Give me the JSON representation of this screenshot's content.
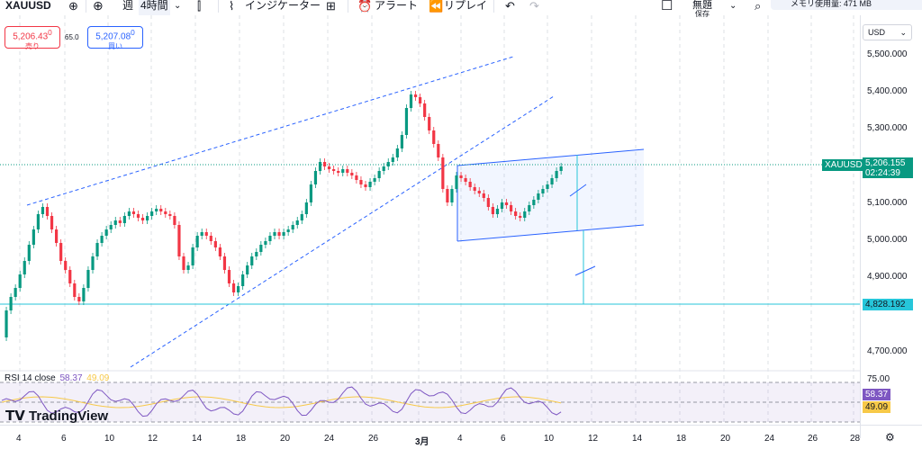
{
  "toolbar": {
    "symbol": "XAUUSD",
    "interval_week": "週",
    "interval_4h": "4時間",
    "indicators_label": "インジケーター",
    "alert_label": "アラート",
    "replay_label": "リプレイ",
    "layout_name": "無題",
    "save_label": "保存",
    "memory_label": "メモリ使用量: 471 MB"
  },
  "trade": {
    "sell_price": "5,206.43",
    "sell_sup": "0",
    "sell_label": "売り",
    "buy_price": "5,207.08",
    "buy_sup": "0",
    "buy_label": "買い",
    "spread": "65.0"
  },
  "price_axis": {
    "currency": "USD",
    "labels": [
      "5,500.000",
      "5,400.000",
      "5,300.000",
      "5,100.000",
      "5,000.000",
      "4,900.000",
      "4,700.000"
    ],
    "symbol_tag": "XAUUSD",
    "current_price": "5,206.155",
    "countdown": "02:24:39",
    "line_price": "4,828.192"
  },
  "time_axis": {
    "labels": [
      "4",
      "6",
      "10",
      "12",
      "14",
      "18",
      "20",
      "24",
      "26",
      "3月",
      "4",
      "6",
      "10",
      "12",
      "14",
      "18",
      "20",
      "24",
      "26",
      "28"
    ]
  },
  "rsi": {
    "legend_name": "RSI 14 close",
    "value": "58.37",
    "ma_value": "49.09",
    "upper": "75.00"
  },
  "brand": {
    "logo_text": "TradingView"
  },
  "colors": {
    "up": "#089981",
    "down": "#f23645",
    "trend": "#2962ff",
    "teal": "#26c6da",
    "rsi": "#7e57c2",
    "rsi_ma": "#f7c948"
  }
}
